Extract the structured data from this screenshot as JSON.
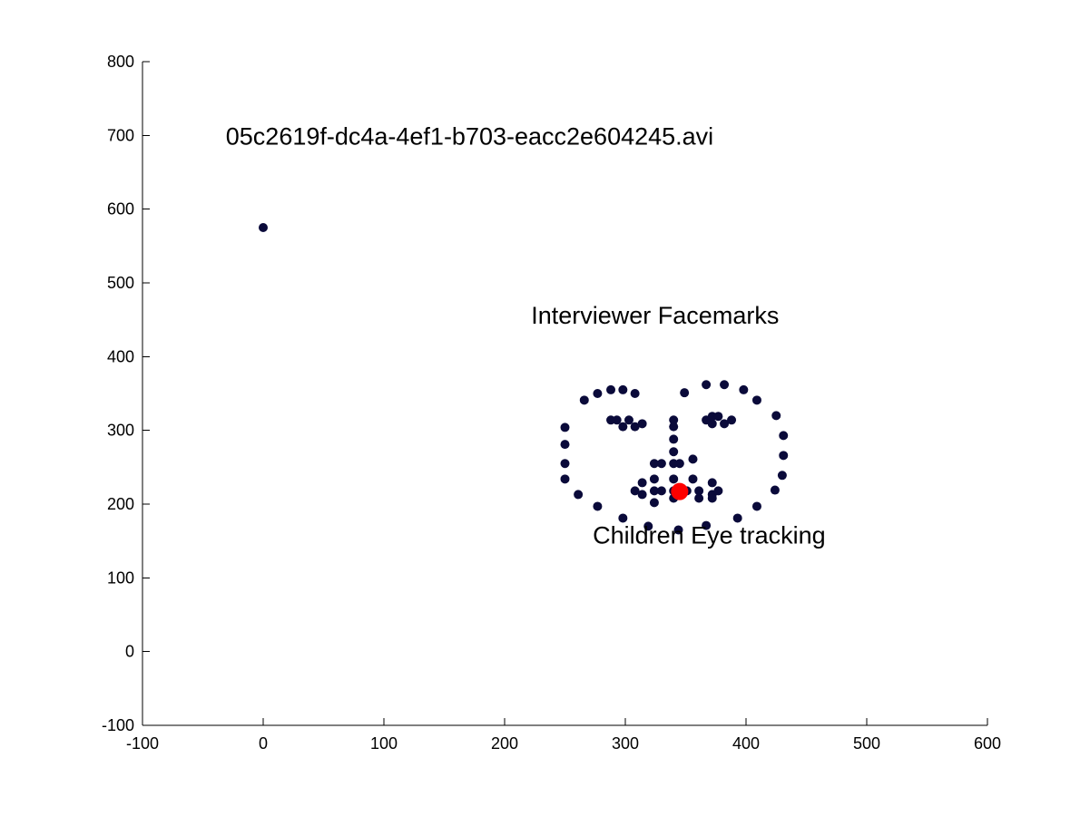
{
  "chart_data": {
    "type": "scatter",
    "title": "",
    "xlabel": "",
    "ylabel": "",
    "xlim": [
      -100,
      600
    ],
    "ylim": [
      -100,
      800
    ],
    "xticks": [
      -100,
      0,
      100,
      200,
      300,
      400,
      500,
      600
    ],
    "yticks": [
      -100,
      0,
      100,
      200,
      300,
      400,
      500,
      600,
      700,
      800
    ],
    "grid": false,
    "legend": "none",
    "annotations": [
      {
        "text": "05c2619f-dc4a-4ef1-b703-eacc2e604245.avi",
        "x": -31,
        "y": 700
      },
      {
        "text": "Interviewer Facemarks",
        "x": 222,
        "y": 457
      },
      {
        "text": "Children Eye tracking",
        "x": 273,
        "y": 159
      }
    ],
    "series": [
      {
        "color": "#0a0a3a",
        "marker_size": "small",
        "points": [
          [
            0,
            575
          ],
          [
            250,
            304
          ],
          [
            250,
            281
          ],
          [
            250,
            255
          ],
          [
            250,
            234
          ],
          [
            261,
            213
          ],
          [
            277,
            197
          ],
          [
            298,
            181
          ],
          [
            319,
            170
          ],
          [
            344,
            165
          ],
          [
            367,
            171
          ],
          [
            393,
            181
          ],
          [
            409,
            197
          ],
          [
            424,
            219
          ],
          [
            430,
            239
          ],
          [
            431,
            266
          ],
          [
            431,
            293
          ],
          [
            425,
            320
          ],
          [
            266,
            341
          ],
          [
            277,
            350
          ],
          [
            288,
            355
          ],
          [
            298,
            355
          ],
          [
            308,
            350
          ],
          [
            349,
            351
          ],
          [
            367,
            362
          ],
          [
            382,
            362
          ],
          [
            398,
            355
          ],
          [
            409,
            341
          ],
          [
            288,
            314
          ],
          [
            293,
            314
          ],
          [
            303,
            314
          ],
          [
            298,
            305
          ],
          [
            308,
            305
          ],
          [
            314,
            309
          ],
          [
            367,
            314
          ],
          [
            372,
            319
          ],
          [
            377,
            319
          ],
          [
            382,
            309
          ],
          [
            388,
            314
          ],
          [
            372,
            309
          ],
          [
            340,
            314
          ],
          [
            340,
            305
          ],
          [
            340,
            288
          ],
          [
            340,
            271
          ],
          [
            340,
            255
          ],
          [
            324,
            255
          ],
          [
            330,
            255
          ],
          [
            345,
            255
          ],
          [
            356,
            261
          ],
          [
            314,
            229
          ],
          [
            324,
            234
          ],
          [
            340,
            234
          ],
          [
            356,
            234
          ],
          [
            372,
            229
          ],
          [
            308,
            218
          ],
          [
            314,
            213
          ],
          [
            324,
            218
          ],
          [
            330,
            218
          ],
          [
            340,
            218
          ],
          [
            345,
            218
          ],
          [
            351,
            218
          ],
          [
            361,
            218
          ],
          [
            372,
            213
          ],
          [
            377,
            218
          ],
          [
            324,
            202
          ],
          [
            340,
            208
          ],
          [
            361,
            208
          ],
          [
            372,
            208
          ]
        ]
      },
      {
        "color": "#ff0000",
        "marker_size": "large",
        "points": [
          [
            345,
            217
          ]
        ]
      }
    ]
  }
}
